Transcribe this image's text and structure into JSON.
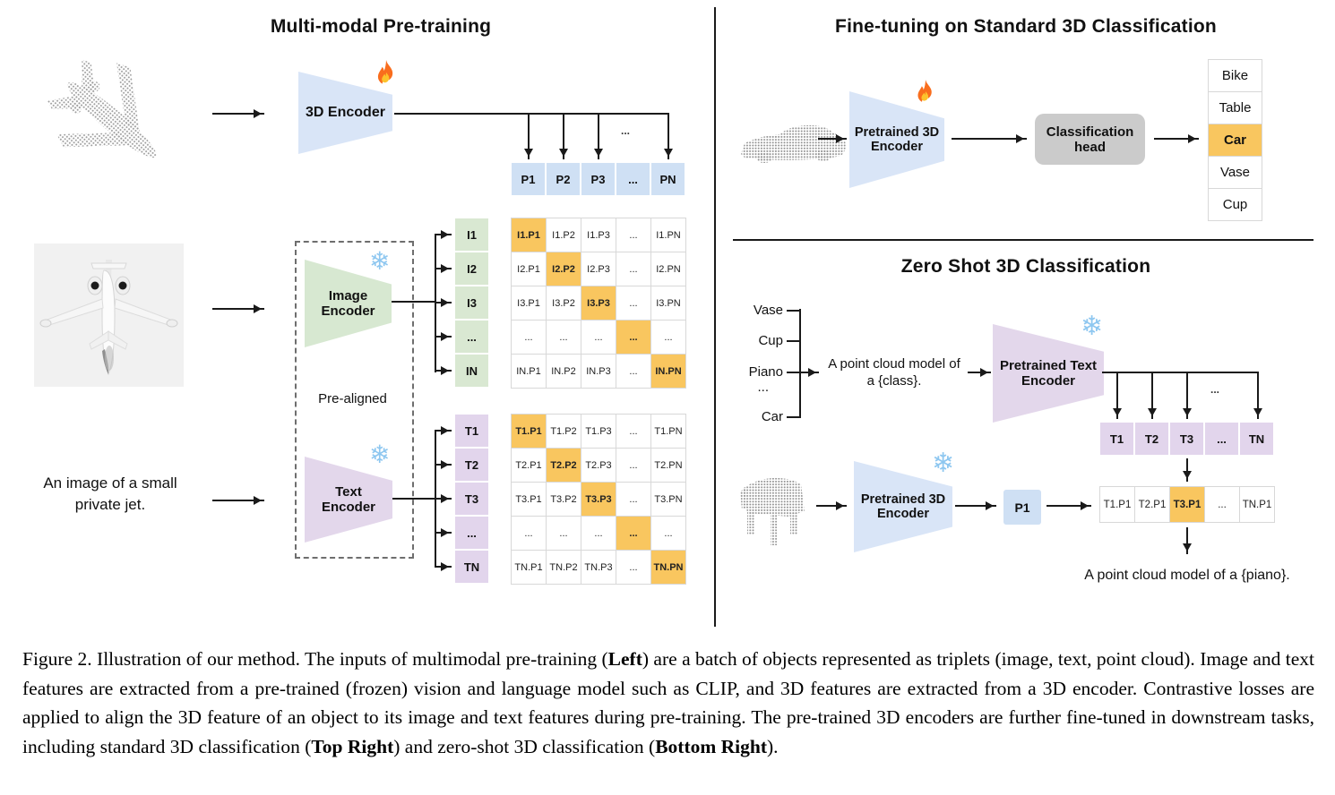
{
  "colors": {
    "blue_fill": "#d9e5f7",
    "blue_cell": "#cfe0f4",
    "green_fill": "#d7e8d1",
    "green_cell": "#d9e8d2",
    "purple_fill": "#e3d7eb",
    "purple_cell": "#e2d5ec",
    "highlight_orange": "#f9c65f",
    "head_gray": "#cbcbcb",
    "line": "#1a1a1a"
  },
  "icons": {
    "flame": "flame-icon",
    "snowflake": "snowflake-icon",
    "snowflake_glyph": "❄",
    "ellipsis": "..."
  },
  "pretrain": {
    "title": "Multi-modal Pre-training",
    "encoder_3d_label": "3D Encoder",
    "image_encoder_label": "Image\nEncoder",
    "text_encoder_label": "Text\nEncoder",
    "prealigned_label": "Pre-aligned",
    "input_text": "An image of a small\nprivate jet.",
    "p_fan_dots": "...",
    "p_row": [
      [
        {
          "t": "P1"
        },
        {
          "t": "P2"
        },
        {
          "t": "P3"
        },
        {
          "t": "..."
        },
        {
          "t": "PN"
        }
      ]
    ],
    "i_col": [
      [
        {
          "t": "I1"
        }
      ],
      [
        {
          "t": "I2"
        }
      ],
      [
        {
          "t": "I3"
        }
      ],
      [
        {
          "t": "..."
        }
      ],
      [
        {
          "t": "IN"
        }
      ]
    ],
    "t_col": [
      [
        {
          "t": "T1"
        }
      ],
      [
        {
          "t": "T2"
        }
      ],
      [
        {
          "t": "T3"
        }
      ],
      [
        {
          "t": "..."
        }
      ],
      [
        {
          "t": "TN"
        }
      ]
    ],
    "i_matrix": [
      [
        {
          "t": "I1.P1",
          "hl": 1,
          "b": 1
        },
        {
          "t": "I1.P2"
        },
        {
          "t": "I1.P3"
        },
        {
          "t": "..."
        },
        {
          "t": "I1.PN"
        }
      ],
      [
        {
          "t": "I2.P1"
        },
        {
          "t": "I2.P2",
          "hl": 1,
          "b": 1
        },
        {
          "t": "I2.P3"
        },
        {
          "t": "..."
        },
        {
          "t": "I2.PN"
        }
      ],
      [
        {
          "t": "I3.P1"
        },
        {
          "t": "I3.P2"
        },
        {
          "t": "I3.P3",
          "hl": 1,
          "b": 1
        },
        {
          "t": "..."
        },
        {
          "t": "I3.PN"
        }
      ],
      [
        {
          "t": "..."
        },
        {
          "t": "..."
        },
        {
          "t": "..."
        },
        {
          "t": "...",
          "hl": 1,
          "b": 1
        },
        {
          "t": "..."
        }
      ],
      [
        {
          "t": "IN.P1"
        },
        {
          "t": "IN.P2"
        },
        {
          "t": "IN.P3"
        },
        {
          "t": "..."
        },
        {
          "t": "IN.PN",
          "hl": 1,
          "b": 1
        }
      ]
    ],
    "t_matrix": [
      [
        {
          "t": "T1.P1",
          "hl": 1,
          "b": 1
        },
        {
          "t": "T1.P2"
        },
        {
          "t": "T1.P3"
        },
        {
          "t": "..."
        },
        {
          "t": "T1.PN"
        }
      ],
      [
        {
          "t": "T2.P1"
        },
        {
          "t": "T2.P2",
          "hl": 1,
          "b": 1
        },
        {
          "t": "T2.P3"
        },
        {
          "t": "..."
        },
        {
          "t": "T2.PN"
        }
      ],
      [
        {
          "t": "T3.P1"
        },
        {
          "t": "T3.P2"
        },
        {
          "t": "T3.P3",
          "hl": 1,
          "b": 1
        },
        {
          "t": "..."
        },
        {
          "t": "T3.PN"
        }
      ],
      [
        {
          "t": "..."
        },
        {
          "t": "..."
        },
        {
          "t": "..."
        },
        {
          "t": "...",
          "hl": 1,
          "b": 1
        },
        {
          "t": "..."
        }
      ],
      [
        {
          "t": "TN.P1"
        },
        {
          "t": "TN.P2"
        },
        {
          "t": "TN.P3"
        },
        {
          "t": "..."
        },
        {
          "t": "TN.PN",
          "hl": 1,
          "b": 1
        }
      ]
    ]
  },
  "finetune": {
    "title": "Fine-tuning on Standard 3D Classification",
    "encoder_label": "Pretrained 3D\nEncoder",
    "head_label": "Classification\nhead",
    "classes": [
      [
        {
          "t": "Bike"
        }
      ],
      [
        {
          "t": "Table"
        }
      ],
      [
        {
          "t": "Car",
          "hl": 1,
          "b": 1
        }
      ],
      [
        {
          "t": "Vase"
        }
      ],
      [
        {
          "t": "Cup"
        }
      ]
    ]
  },
  "zeroshot": {
    "title": "Zero Shot 3D Classification",
    "class_labels": [
      "Vase",
      "Cup",
      "Piano",
      "...",
      "Car"
    ],
    "prompt_text": "A point cloud model of\na {class}.",
    "text_encoder_label": "Pretrained Text\nEncoder",
    "encoder_label": "Pretrained 3D\nEncoder",
    "p1_label": "P1",
    "fan_dots": "...",
    "t_row": [
      [
        {
          "t": "T1"
        },
        {
          "t": "T2"
        },
        {
          "t": "T3"
        },
        {
          "t": "..."
        },
        {
          "t": "TN"
        }
      ]
    ],
    "result_row": [
      [
        {
          "t": "T1.P1"
        },
        {
          "t": "T2.P1"
        },
        {
          "t": "T3.P1",
          "hl": 1,
          "b": 1
        },
        {
          "t": "..."
        },
        {
          "t": "TN.P1"
        }
      ]
    ],
    "result_caption": "A point cloud model of a {piano}."
  },
  "caption": {
    "segments": [
      {
        "t": "Figure 2. Illustration of our method. The inputs of multimodal pre-training ("
      },
      {
        "t": "Left",
        "b": 1
      },
      {
        "t": ") are a batch of objects represented as triplets (image, text, point cloud).  Image and text features are extracted from a pre-trained (frozen) vision and language model such as CLIP, and 3D features are extracted from a 3D encoder.  Contrastive losses are applied to align the 3D feature of an object to its image and text features during pre-training. The pre-trained 3D encoders are further fine-tuned in downstream tasks, including standard 3D classification ("
      },
      {
        "t": "Top Right",
        "b": 1
      },
      {
        "t": ") and zero-shot 3D classification ("
      },
      {
        "t": "Bottom Right",
        "b": 1
      },
      {
        "t": ")."
      }
    ]
  }
}
